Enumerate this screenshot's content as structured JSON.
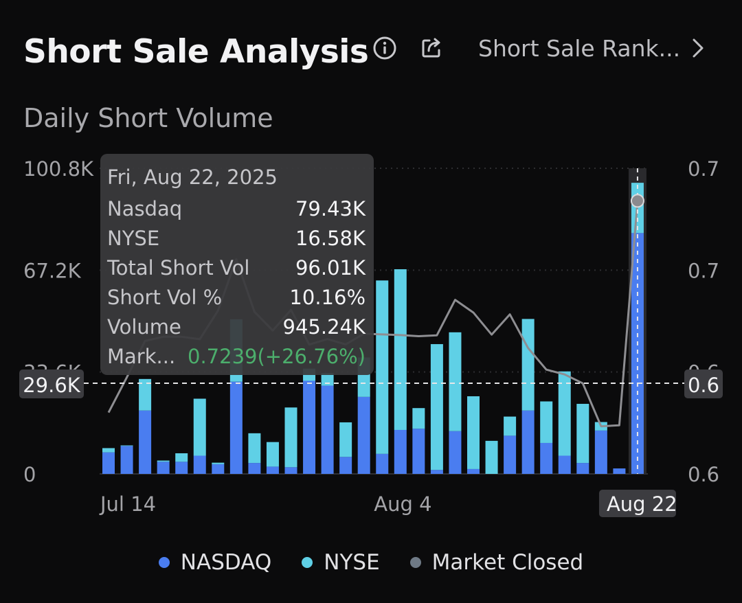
{
  "header": {
    "title": "Short Sale Analysis",
    "info_icon": "info-circle-icon",
    "share_icon": "share-icon",
    "rank_link": "Short Sale Rank...",
    "rank_chevron": "chevron-right-icon"
  },
  "subtitle": "Daily Short Volume",
  "tooltip": {
    "date": "Fri, Aug 22, 2025",
    "rows": [
      {
        "label": "Nasdaq",
        "value": "79.43K"
      },
      {
        "label": "NYSE",
        "value": "16.58K"
      },
      {
        "label": "Total Short Vol",
        "value": "96.01K"
      },
      {
        "label": "Short Vol %",
        "value": "10.16%"
      },
      {
        "label": "Volume",
        "value": "945.24K"
      },
      {
        "label": "Mark...",
        "value": "0.7239(+26.76%)"
      }
    ]
  },
  "crosshair": {
    "left_value": "29.6K",
    "right_value": "0.6"
  },
  "legend": [
    {
      "label": "NASDAQ",
      "color": "#4a7df0"
    },
    {
      "label": "NYSE",
      "color": "#5fd0e6"
    },
    {
      "label": "Market Closed",
      "color": "#6f7a86"
    }
  ],
  "colors": {
    "nasdaq": "#4a7df0",
    "nyse": "#5fd0e6",
    "line": "#8e8e92",
    "positive": "#4cae6c"
  },
  "chart_data": {
    "type": "bar",
    "stacked": true,
    "secondary_axis": "line",
    "title": "Daily Short Volume",
    "y_left": {
      "ticks": [
        "0",
        "33.6K",
        "67.2K",
        "100.8K"
      ],
      "range": [
        0,
        100.8
      ]
    },
    "y_right": {
      "ticks": [
        "0.6",
        "0.6",
        "0.7",
        "0.7"
      ],
      "range": [
        0.5712,
        0.7421
      ]
    },
    "x_ticks": [
      {
        "index": 0,
        "label": "Jul 14"
      },
      {
        "index": 15,
        "label": "Aug 4"
      },
      {
        "index": 29,
        "label": "Aug 22"
      }
    ],
    "selected_index": 29,
    "series": [
      {
        "name": "NASDAQ",
        "values": [
          7.1,
          9.2,
          20.9,
          4.0,
          4.0,
          6.0,
          3.2,
          30.4,
          3.6,
          2.4,
          2.2,
          30.7,
          29.1,
          5.6,
          25.4,
          6.6,
          14.5,
          14.9,
          1.3,
          14.1,
          1.6,
          0,
          12.6,
          20.9,
          10.2,
          6.0,
          3.6,
          14.3,
          1.8,
          79.43
        ]
      },
      {
        "name": "NYSE",
        "values": [
          1.4,
          0.2,
          10.4,
          0.4,
          2.8,
          18.8,
          0.5,
          20.6,
          9.8,
          8.1,
          19.7,
          4.0,
          4.2,
          11.4,
          13.0,
          57.2,
          53.0,
          6.8,
          41.5,
          32.6,
          24.0,
          10.9,
          6.3,
          30.2,
          13.7,
          27.8,
          19.5,
          2.8,
          0,
          16.58
        ]
      },
      {
        "name": "Market Price",
        "values": [
          0.6055,
          0.6252,
          0.6455,
          0.6479,
          0.6479,
          0.6465,
          0.6625,
          0.6912,
          0.6618,
          0.6514,
          0.6629,
          0.6435,
          0.6466,
          0.6436,
          0.6496,
          0.6492,
          0.6488,
          0.6482,
          0.6487,
          0.6685,
          0.6614,
          0.6491,
          0.6604,
          0.6416,
          0.6295,
          0.6268,
          0.6218,
          0.5978,
          0.5984,
          0.7239
        ]
      }
    ]
  }
}
